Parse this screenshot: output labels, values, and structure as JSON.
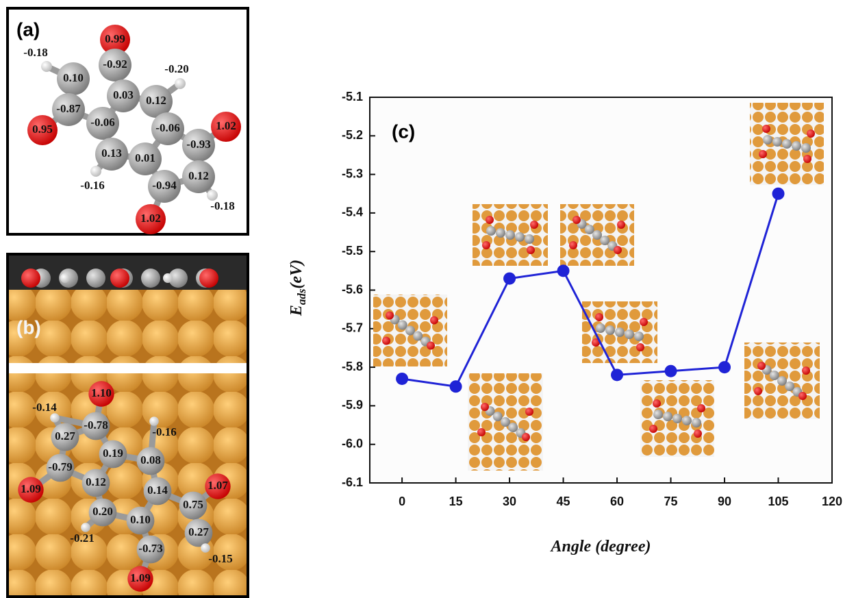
{
  "panel_a": {
    "label": "(a)",
    "charges": [
      "0.99",
      "-0.18",
      "0.10",
      "-0.92",
      "-0.20",
      "0.03",
      "0.12",
      "-0.87",
      "0.95",
      "-0.06",
      "-0.06",
      "1.02",
      "-0.93",
      "0.13",
      "0.01",
      "0.12",
      "-0.16",
      "-0.94",
      "-0.18",
      "1.02"
    ]
  },
  "panel_b": {
    "label": "(b)",
    "charges": [
      "1.10",
      "-0.14",
      "0.27",
      "-0.78",
      "-0.16",
      "0.19",
      "0.08",
      "-0.79",
      "1.09",
      "0.12",
      "0.14",
      "1.07",
      "0.75",
      "0.20",
      "0.10",
      "0.27",
      "-0.21",
      "-0.73",
      "-0.15",
      "1.09"
    ]
  },
  "chart_data": {
    "type": "line",
    "panel_label": "(c)",
    "xlabel": "Angle (degree)",
    "ylabel": {
      "main": "E",
      "sub": "ads",
      "rest": "(eV)"
    },
    "x": [
      0,
      15,
      30,
      45,
      60,
      75,
      90,
      105
    ],
    "series": [
      {
        "color": "#1f23d6",
        "values": [
          -5.83,
          -5.85,
          -5.57,
          -5.55,
          -5.82,
          -5.81,
          -5.8,
          -5.35
        ]
      }
    ],
    "xlim": [
      -9,
      120
    ],
    "ylim": [
      -6.1,
      -5.1
    ],
    "xticks": [
      0,
      15,
      30,
      45,
      60,
      75,
      90,
      105,
      120
    ],
    "yticks": [
      -5.1,
      -5.2,
      -5.3,
      -5.4,
      -5.5,
      -5.6,
      -5.7,
      -5.8,
      -5.9,
      {
        "value": -6,
        "label": "-6.0"
      },
      -6.1
    ]
  }
}
